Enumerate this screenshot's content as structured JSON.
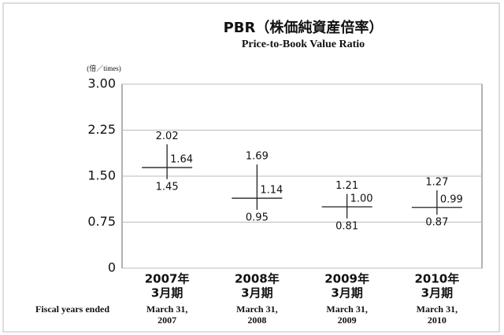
{
  "chart_data": {
    "type": "high-low",
    "title": "PBR（株価純資産倍率）",
    "subtitle": "Price-to-Book Value Ratio",
    "y_unit": "(倍／times)",
    "x_label": "Fiscal years ended",
    "categories": [
      [
        "2007年",
        "3月期"
      ],
      [
        "2008年",
        "3月期"
      ],
      [
        "2009年",
        "3月期"
      ],
      [
        "2010年",
        "3月期"
      ]
    ],
    "categories_en": [
      [
        "March 31,",
        "2007"
      ],
      [
        "March 31,",
        "2008"
      ],
      [
        "March 31,",
        "2009"
      ],
      [
        "March 31,",
        "2010"
      ]
    ],
    "high": [
      2.02,
      1.69,
      1.21,
      1.27
    ],
    "low": [
      1.45,
      0.95,
      0.81,
      0.87
    ],
    "values": [
      1.64,
      1.14,
      1.0,
      0.99
    ],
    "value_labels": [
      "1.64",
      "1.14",
      "1.00",
      "0.99"
    ],
    "color": "#222222",
    "ylim": [
      0,
      3
    ],
    "yticks": [
      0,
      0.75,
      {
        "value": 1.5,
        "label": "1.50"
      },
      2.25,
      {
        "value": 3,
        "label": "3.00"
      }
    ],
    "grid": true
  }
}
